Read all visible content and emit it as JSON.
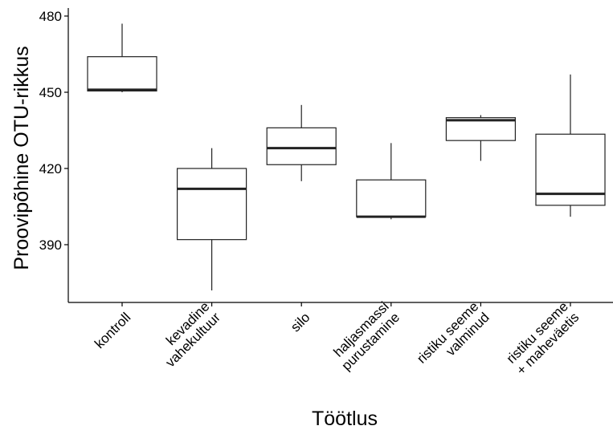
{
  "chart_data": {
    "type": "box",
    "title": "",
    "xlabel": "Töötlus",
    "ylabel": "Proovipõhine OTU-rikkus",
    "ylim": [
      370,
      483
    ],
    "yticks": [
      390,
      420,
      450,
      480
    ],
    "grid": false,
    "categories": [
      [
        "kontroll"
      ],
      [
        "kevadine",
        "vahekultuur"
      ],
      [
        "silo"
      ],
      [
        "haljasmassi",
        "purustamine"
      ],
      [
        "ristiku seeme",
        "valminud"
      ],
      [
        "ristiku seeme",
        "+ maheväetis"
      ]
    ],
    "boxes": [
      {
        "min": 450,
        "q1": 450.5,
        "median": 451,
        "q3": 464,
        "max": 477
      },
      {
        "min": 372,
        "q1": 392,
        "median": 412,
        "q3": 420,
        "max": 428
      },
      {
        "min": 415,
        "q1": 421.5,
        "median": 428,
        "q3": 436,
        "max": 445
      },
      {
        "min": 400,
        "q1": 401,
        "median": 401,
        "q3": 415.5,
        "max": 430
      },
      {
        "min": 423,
        "q1": 431,
        "median": 439,
        "q3": 440,
        "max": 441
      },
      {
        "min": 401,
        "q1": 405.5,
        "median": 410,
        "q3": 433.5,
        "max": 457
      }
    ]
  }
}
